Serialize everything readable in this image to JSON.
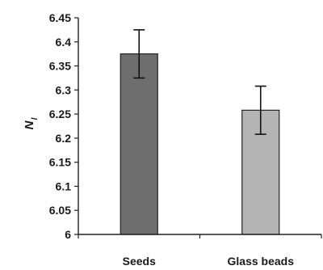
{
  "chart_data": {
    "type": "bar",
    "categories": [
      "Seeds",
      "Glass beads"
    ],
    "values": [
      6.375,
      6.258
    ],
    "errors": [
      0.05,
      0.05
    ],
    "ylabel": "N",
    "ylabel_subscript": "l",
    "xlabel": "",
    "ylim": [
      6,
      6.45
    ],
    "yticks": [
      6,
      6.05,
      6.1,
      6.15,
      6.2,
      6.25,
      6.3,
      6.35,
      6.4,
      6.45
    ],
    "ytick_labels": [
      "6",
      "6.05",
      "6.1",
      "6.15",
      "6.2",
      "6.25",
      "6.3",
      "6.35",
      "6.4",
      "6.45"
    ],
    "bar_colors": [
      "#6e6e6e",
      "#b4b4b4"
    ],
    "grid": false,
    "legend": "none"
  }
}
